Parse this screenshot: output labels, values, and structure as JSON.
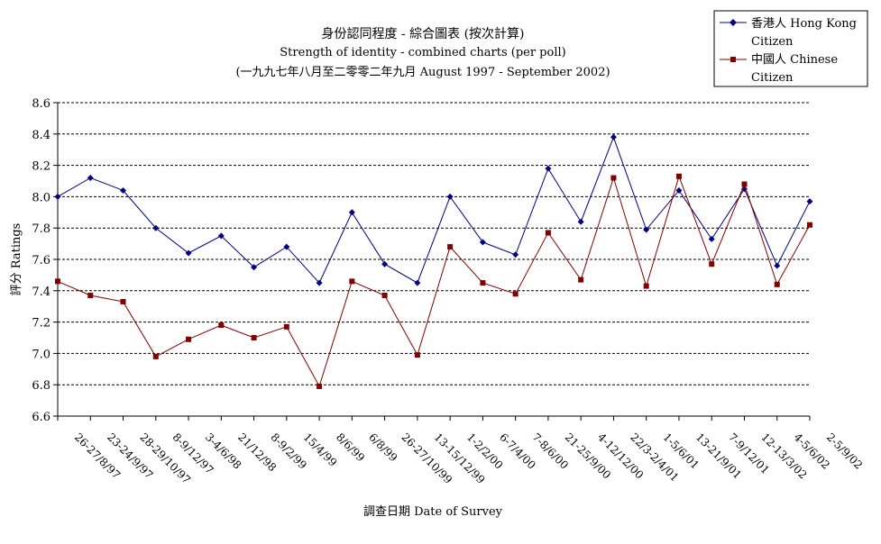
{
  "chart_data": {
    "type": "line",
    "title": "身份認同程度 - 綜合圖表 (按次計算)",
    "subtitle": "Strength of identity -  combined charts (per poll)",
    "subtitle2": "(一九九七年八月至二零零二年九月 August 1997 - September 2002)",
    "xlabel": "調查日期 Date of Survey",
    "ylabel": "評分 Ratings",
    "ylim": [
      6.6,
      8.6
    ],
    "yticks": [
      "6.6",
      "6.8",
      "7.0",
      "7.2",
      "7.4",
      "7.6",
      "7.8",
      "8.0",
      "8.2",
      "8.4",
      "8.6"
    ],
    "grid": true,
    "legend_position": "top-right",
    "categories": [
      "26-27/8/97",
      "23-24/9/97",
      "28-29/10/97",
      "8-9/12/97",
      "3-4/6/98",
      "21/12/98",
      "8-9/2/99",
      "15/4/99",
      "8/6/99",
      "6/8/99",
      "26-27/10/99",
      "13-15/12/99",
      "1-2/2/00",
      "6-7/4/00",
      "7-8/6/00",
      "21-25/9/00",
      "4-12/12/00",
      "22/3-2/4/01",
      "1-5/6/01",
      "13-21/9/01",
      "7-9/12/01",
      "12-13/3/02",
      "4-5/6/02",
      "2-5/9/02"
    ],
    "series": [
      {
        "name_line1": "香港人 Hong Kong",
        "name_line2": "Citizen",
        "color": "#000080",
        "marker": "diamond",
        "values": [
          8.0,
          8.12,
          8.04,
          7.8,
          7.64,
          7.75,
          7.55,
          7.68,
          7.45,
          7.9,
          7.57,
          7.45,
          8.0,
          7.71,
          7.63,
          8.18,
          7.84,
          8.38,
          7.79,
          8.04,
          7.73,
          8.05,
          7.56,
          7.97
        ]
      },
      {
        "name_line1": "中國人 Chinese",
        "name_line2": "Citizen",
        "color": "#800000",
        "marker": "square",
        "values": [
          7.46,
          7.37,
          7.33,
          6.98,
          7.09,
          7.18,
          7.1,
          7.17,
          6.79,
          7.46,
          7.37,
          6.99,
          7.68,
          7.45,
          7.38,
          7.77,
          7.47,
          8.12,
          7.43,
          8.13,
          7.57,
          8.08,
          7.44,
          7.82
        ]
      }
    ]
  }
}
